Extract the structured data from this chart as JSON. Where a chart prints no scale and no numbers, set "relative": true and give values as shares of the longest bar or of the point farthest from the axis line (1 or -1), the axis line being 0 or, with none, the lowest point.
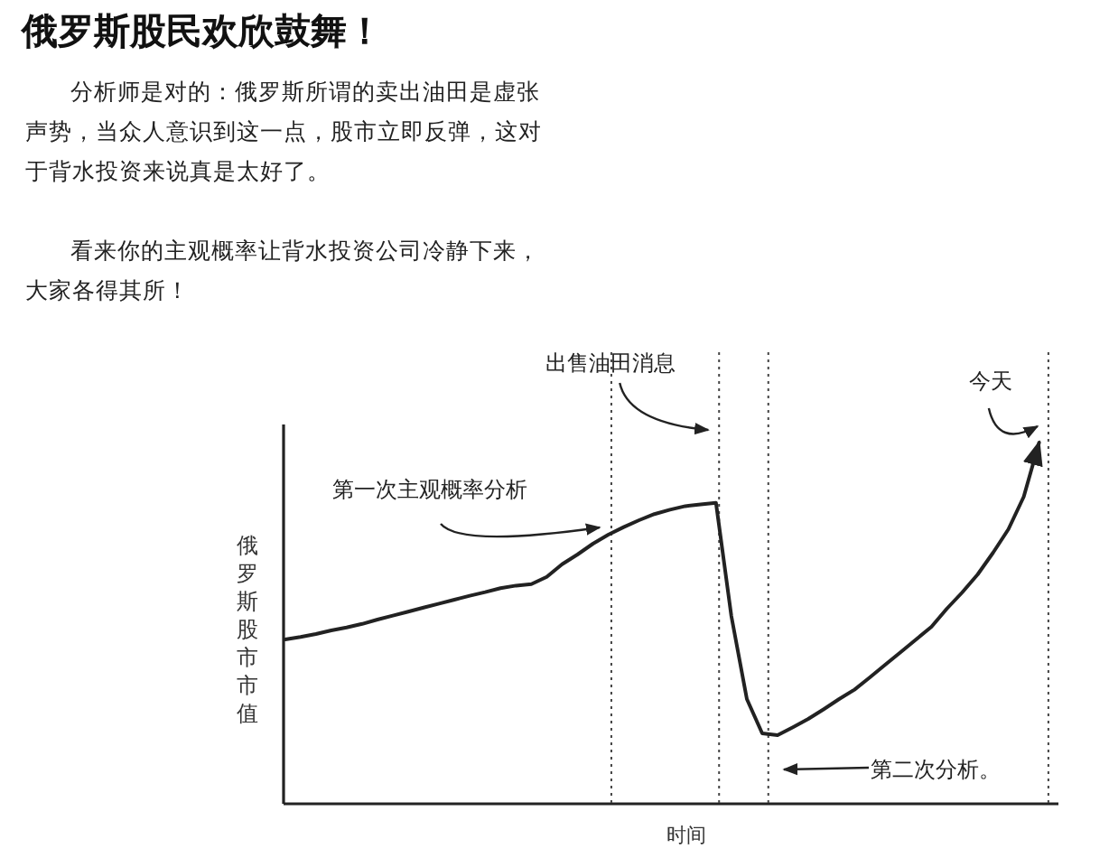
{
  "chart_data": {
    "type": "line",
    "title": "俄罗斯股民欢欣鼓舞！",
    "annotations": [
      "分析师是对的：俄罗斯所谓的卖出油田是虚张声势，当众人意识到这一点，股市立即反弹，这对于背水投资来说真是太好了。",
      "看来你的主观概率让背水投资公司冷静下来，大家各得其所！",
      "出售油田消息",
      "今天",
      "第一次主观概率分析",
      "第二次分析。"
    ],
    "xlabel": "时间",
    "ylabel": "俄罗斯股市市值",
    "relative": true,
    "marker": "none",
    "line_style": "solid",
    "categories": [
      null,
      null,
      null,
      null,
      null,
      null,
      null,
      null,
      null,
      null,
      null,
      null,
      null,
      null,
      null,
      null,
      null,
      null,
      null,
      null,
      null,
      null,
      null,
      null,
      null,
      null,
      null,
      null,
      null,
      null,
      null,
      null,
      null,
      null,
      null,
      null,
      null,
      null,
      null,
      null,
      null,
      null,
      null,
      null,
      null,
      null,
      null,
      null,
      null,
      null
    ],
    "series": [
      {
        "color": "#222222",
        "values": [
          0.455,
          0.462,
          0.47,
          0.48,
          0.488,
          0.498,
          0.51,
          0.521,
          0.532,
          0.543,
          0.554,
          0.565,
          0.576,
          0.586,
          0.597,
          0.604,
          0.608,
          0.628,
          0.663,
          0.69,
          0.72,
          0.745,
          0.766,
          0.785,
          0.802,
          0.814,
          0.824,
          0.829,
          0.833,
          0.52,
          0.29,
          0.195,
          0.19,
          0.212,
          0.235,
          0.262,
          0.29,
          0.316,
          0.35,
          0.385,
          0.42,
          0.455,
          0.49,
          0.54,
          0.585,
          0.635,
          0.695,
          0.76,
          0.85,
          1.0
        ]
      }
    ]
  }
}
